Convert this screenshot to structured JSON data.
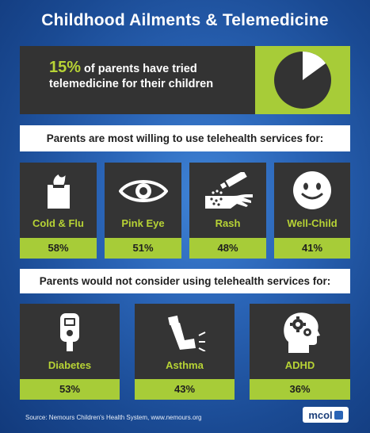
{
  "title": "Childhood Ailments & Telemedicine",
  "stat": {
    "percent": "15%",
    "line1": " of parents have tried",
    "line2": "telemedicine for their children",
    "pie_fraction": 0.15
  },
  "willing": {
    "heading": "Parents are most willing to use telehealth services for:",
    "items": [
      {
        "label": "Cold & Flu",
        "percent": "58%",
        "icon": "tissue-box-icon"
      },
      {
        "label": "Pink Eye",
        "percent": "51%",
        "icon": "eye-icon"
      },
      {
        "label": "Rash",
        "percent": "48%",
        "icon": "ointment-hand-icon"
      },
      {
        "label": "Well-Child",
        "percent": "41%",
        "icon": "smiley-face-icon"
      }
    ]
  },
  "not_consider": {
    "heading": "Parents would not consider using telehealth services for:",
    "items": [
      {
        "label": "Diabetes",
        "percent": "53%",
        "icon": "glucose-meter-icon"
      },
      {
        "label": "Asthma",
        "percent": "43%",
        "icon": "inhaler-icon"
      },
      {
        "label": "ADHD",
        "percent": "36%",
        "icon": "head-gears-icon"
      }
    ]
  },
  "source": "Source:  Nemours Children's Health System, www.nemours.org",
  "logo": "mcol",
  "colors": {
    "accent_green": "#a7cc38",
    "panel_dark": "#343434",
    "background_blue": "#2a64b6"
  }
}
